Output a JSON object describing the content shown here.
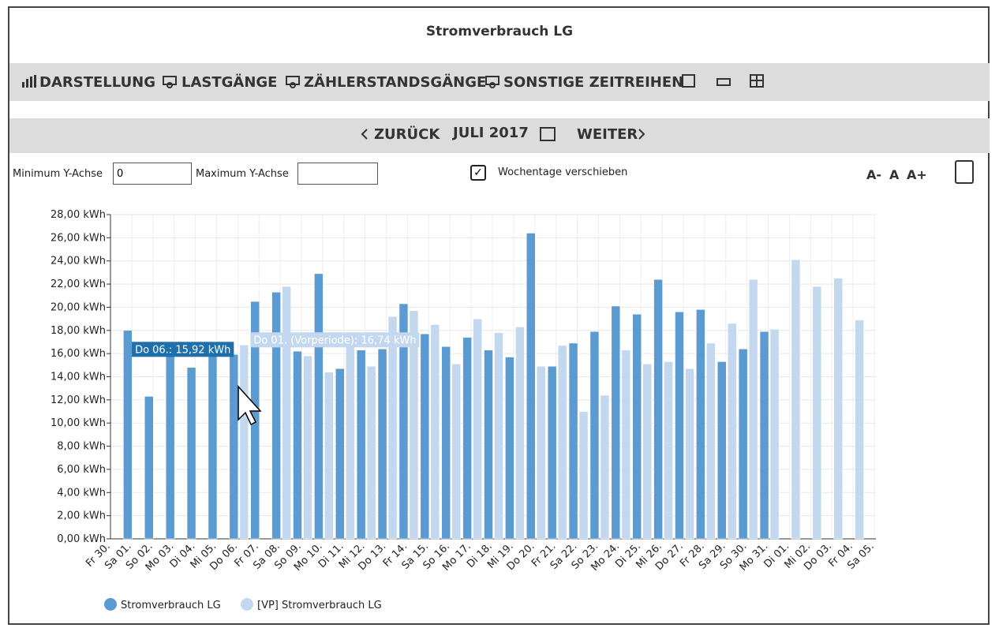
{
  "header": {
    "title": "Stromverbrauch LG"
  },
  "toolbar": {
    "items": [
      "DARSTELLUNG",
      "LASTGÄNGE",
      "ZÄHLERSTANDSGÄNGE",
      "SONSTIGE ZEITREIHEN"
    ]
  },
  "navigation": {
    "back": "ZURÜCK",
    "period": "JULI 2017",
    "forward": "WEITER"
  },
  "controls": {
    "min_label": "Minimum Y-Achse",
    "min_value": "0",
    "max_label": "Maximum Y-Achse",
    "checkbox_label": "Wochentage verschieben",
    "font_sizes": [
      "A-",
      "A",
      "A+"
    ]
  },
  "chart_data": {
    "type": "bar",
    "categories": [
      "Fr 30.",
      "Sa 01.",
      "So 02.",
      "Mo 03.",
      "Di 04.",
      "Mi 05.",
      "Do 06.",
      "Fr 07.",
      "Sa 08.",
      "So 09.",
      "Mo 10.",
      "Di 11.",
      "Mi 12.",
      "Do 13.",
      "Fr 14.",
      "Sa 15.",
      "So 16.",
      "Mo 17.",
      "Di 18.",
      "Mi 19.",
      "Do 20.",
      "Fr 21.",
      "Sa 22.",
      "So 23.",
      "Mo 24.",
      "Di 25.",
      "Mi 26.",
      "Do 27.",
      "Fr 28.",
      "Sa 29.",
      "So 30.",
      "Mo 31.",
      "Di 01.",
      "Mi 02.",
      "Do 03.",
      "Fr 04.",
      "Sa 05."
    ],
    "series": [
      {
        "name": "Stromverbrauch LG",
        "color": "#5b9bd1",
        "values": [
          null,
          18.0,
          12.3,
          16.7,
          14.8,
          15.8,
          15.92,
          20.5,
          21.3,
          16.2,
          22.9,
          14.7,
          16.3,
          16.4,
          20.3,
          17.7,
          16.6,
          17.4,
          16.3,
          15.7,
          26.4,
          14.9,
          16.9,
          17.9,
          20.1,
          19.4,
          22.4,
          19.6,
          19.8,
          15.3,
          16.4,
          17.9,
          null,
          null,
          null,
          null,
          null
        ]
      },
      {
        "name": "[VP] Stromverbrauch LG",
        "color": "#c3d8ef",
        "values": [
          null,
          null,
          null,
          null,
          null,
          null,
          16.74,
          null,
          21.8,
          15.8,
          14.4,
          17.6,
          14.9,
          19.2,
          19.7,
          18.5,
          15.1,
          19.0,
          17.8,
          18.3,
          14.9,
          16.7,
          11.0,
          12.4,
          16.3,
          15.1,
          15.3,
          14.7,
          16.9,
          18.6,
          22.4,
          18.1,
          24.1,
          21.8,
          22.5,
          18.9,
          null
        ]
      }
    ],
    "ylim": [
      0,
      28
    ],
    "yticks": [
      {
        "value": 0,
        "label": "0,00 kWh"
      },
      {
        "value": 2,
        "label": "2,00 kWh"
      },
      {
        "value": 4,
        "label": "4,00 kWh"
      },
      {
        "value": 6,
        "label": "6,00 kWh"
      },
      {
        "value": 8,
        "label": "8,00 kWh"
      },
      {
        "value": 10,
        "label": "10,00 kWh"
      },
      {
        "value": 12,
        "label": "12,00 kWh"
      },
      {
        "value": 14,
        "label": "14,00 kWh"
      },
      {
        "value": 16,
        "label": "16,00 kWh"
      },
      {
        "value": 18,
        "label": "18,00 kWh"
      },
      {
        "value": 20,
        "label": "20,00 kWh"
      },
      {
        "value": 22,
        "label": "22,00 kWh"
      },
      {
        "value": 24,
        "label": "24,00 kWh"
      },
      {
        "value": 26,
        "label": "26,00 kWh"
      },
      {
        "value": 28,
        "label": "28,00 kWh"
      }
    ],
    "grid": true,
    "tooltips": [
      "Do 06.: 15,92 kWh",
      "Do 01. (Vorperiode): 16,74 kWh"
    ]
  }
}
